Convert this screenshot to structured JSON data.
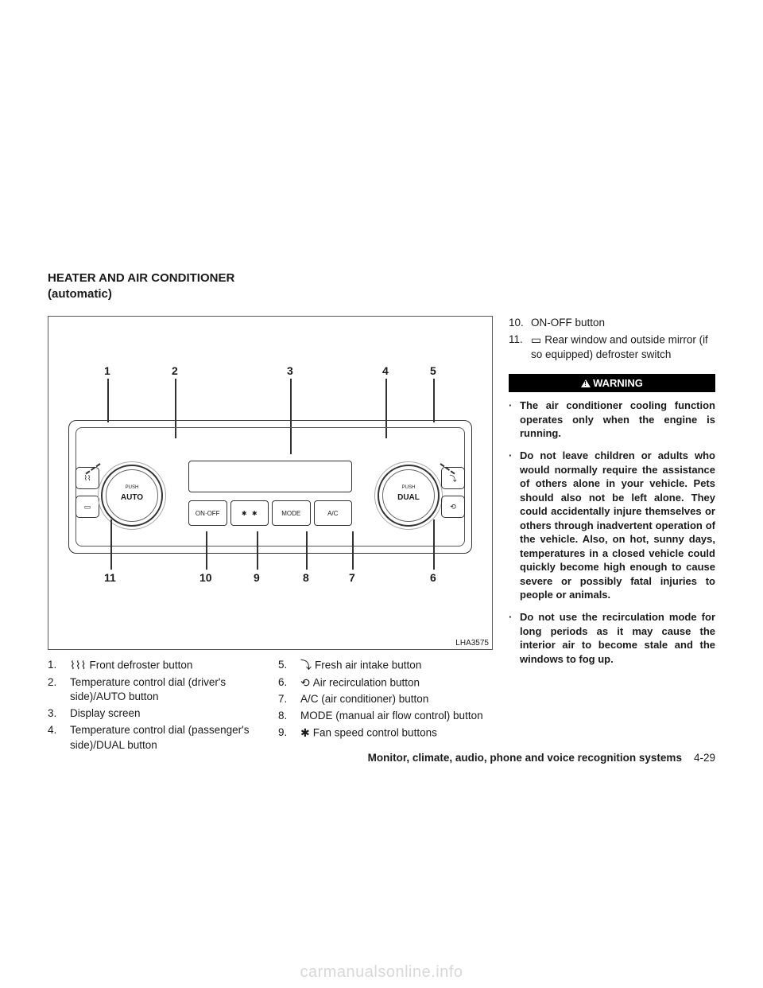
{
  "section_title_line1": "HEATER AND AIR CONDITIONER",
  "section_title_line2": "(automatic)",
  "diagram": {
    "image_code": "LHA3575",
    "callouts_top": [
      "1",
      "2",
      "3",
      "4",
      "5"
    ],
    "callouts_bottom": [
      "11",
      "10",
      "9",
      "8",
      "7",
      "6"
    ],
    "dial_left_push": "PUSH",
    "dial_left_label": "AUTO",
    "dial_right_push": "PUSH",
    "dial_right_label": "DUAL",
    "btn_onoff": "ON·OFF",
    "btn_fan": "✱",
    "btn_mode": "MODE",
    "btn_ac": "A/C"
  },
  "list_left": [
    {
      "n": "1.",
      "icon": "⌇⌇⌇",
      "text": "Front defroster button"
    },
    {
      "n": "2.",
      "icon": "",
      "text": "Temperature control dial (driver's side)/AUTO button"
    },
    {
      "n": "3.",
      "icon": "",
      "text": "Display screen"
    },
    {
      "n": "4.",
      "icon": "",
      "text": "Temperature control dial (passenger's side)/DUAL button"
    }
  ],
  "list_mid": [
    {
      "n": "5.",
      "icon": "⤵",
      "text": "Fresh air intake button"
    },
    {
      "n": "6.",
      "icon": "⟲",
      "text": "Air recirculation button"
    },
    {
      "n": "7.",
      "icon": "",
      "text": "A/C (air conditioner) button"
    },
    {
      "n": "8.",
      "icon": "",
      "text": "MODE (manual air flow control) button"
    },
    {
      "n": "9.",
      "icon": "✱",
      "text": "Fan speed control buttons"
    }
  ],
  "list_right": [
    {
      "n": "10.",
      "icon": "",
      "text": "ON-OFF button"
    },
    {
      "n": "11.",
      "icon": "▭",
      "text": "Rear window and outside mirror (if so equipped) defroster switch"
    }
  ],
  "warning_label": "WARNING",
  "warnings": [
    "The air conditioner cooling function operates only when the engine is running.",
    "Do not leave children or adults who would normally require the assistance of others alone in your vehicle. Pets should also not be left alone. They could accidentally injure themselves or others through inadvertent operation of the vehicle. Also, on hot, sunny days, temperatures in a closed vehicle could quickly become high enough to cause severe or possibly fatal injuries to people or animals.",
    "Do not use the recirculation mode for long periods as it may cause the interior air to become stale and the windows to fog up."
  ],
  "footer_section": "Monitor, climate, audio, phone and voice recognition systems",
  "footer_page": "4-29",
  "watermark": "carmanualsonline.info"
}
